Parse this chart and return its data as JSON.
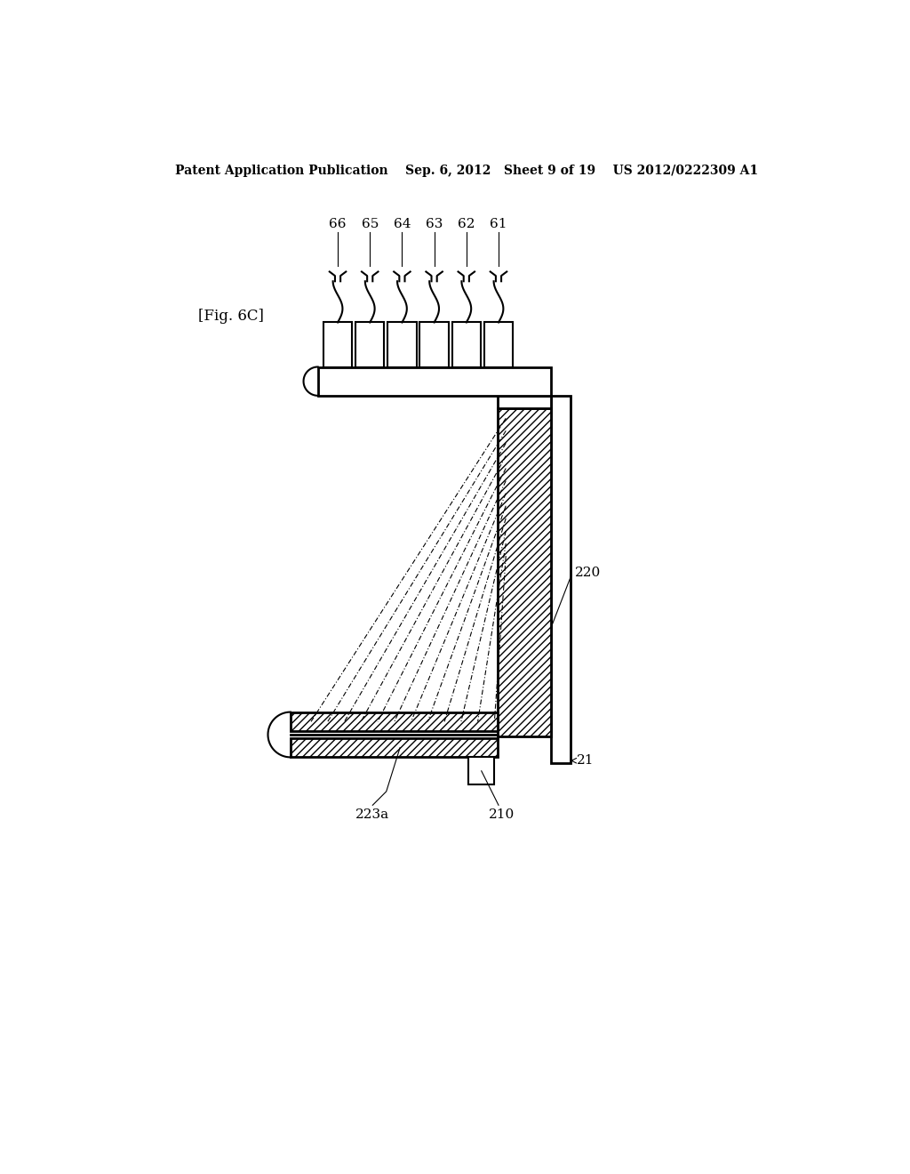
{
  "bg_color": "#ffffff",
  "line_color": "#000000",
  "header_text": "Patent Application Publication    Sep. 6, 2012   Sheet 9 of 19    US 2012/0222309 A1",
  "fig_label": "[Fig. 6C]",
  "label_names_plugs": [
    "66",
    "65",
    "64",
    "63",
    "62",
    "61"
  ],
  "label_220": "220",
  "label_21": "21",
  "label_223a": "223a",
  "label_210": "210",
  "plug_count": 6,
  "n_beams": 12,
  "hatch_density": "////"
}
